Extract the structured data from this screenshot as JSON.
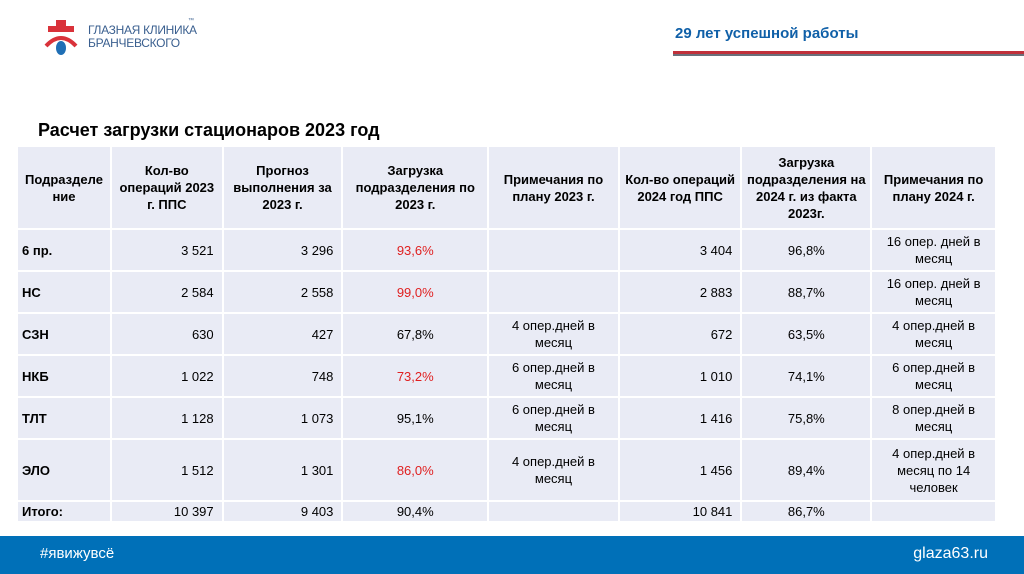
{
  "header": {
    "logo_line1": "ГЛАЗНАЯ КЛИНИКА",
    "logo_line2": "БРАНЧЕВСКОГО",
    "logo_tm": "™",
    "slogan": "29 лет успешной работы"
  },
  "title": "Расчет загрузки стационаров 2023 год",
  "table": {
    "columns": [
      "Подразделе ние",
      "Кол-во операций 2023 г. ППС",
      "Прогноз выполнения за 2023 г.",
      "Загрузка подразделения по 2023 г.",
      "Примечания по плану 2023 г.",
      "Кол-во операций 2024 год ППС",
      "Загрузка подразделения на 2024 г. из факта 2023г.",
      "Примечания по плану 2024 г."
    ],
    "rows": [
      {
        "unit": "6 пр.",
        "ops2023": "3 521",
        "forecast": "3 296",
        "load2023": "93,6%",
        "red": true,
        "note2023": "",
        "ops2024": "3 404",
        "load2024": "96,8%",
        "note2024": "16 опер. дней в месяц"
      },
      {
        "unit": "НС",
        "ops2023": "2 584",
        "forecast": "2 558",
        "load2023": "99,0%",
        "red": true,
        "note2023": "",
        "ops2024": "2 883",
        "load2024": "88,7%",
        "note2024": "16 опер. дней в месяц"
      },
      {
        "unit": "СЗН",
        "ops2023": "630",
        "forecast": "427",
        "load2023": "67,8%",
        "red": false,
        "note2023": "4 опер.дней в месяц",
        "ops2024": "672",
        "load2024": "63,5%",
        "note2024": "4 опер.дней в месяц"
      },
      {
        "unit": "НКБ",
        "ops2023": "1 022",
        "forecast": "748",
        "load2023": "73,2%",
        "red": true,
        "note2023": "6 опер.дней в месяц",
        "ops2024": "1 010",
        "load2024": "74,1%",
        "note2024": "6 опер.дней в месяц"
      },
      {
        "unit": "ТЛТ",
        "ops2023": "1 128",
        "forecast": "1 073",
        "load2023": "95,1%",
        "red": false,
        "note2023": "6 опер.дней в месяц",
        "ops2024": "1 416",
        "load2024": "75,8%",
        "note2024": "8 опер.дней в месяц"
      },
      {
        "unit": "ЭЛО",
        "ops2023": "1 512",
        "forecast": "1 301",
        "load2023": "86,0%",
        "red": true,
        "note2023": "4 опер.дней в месяц",
        "ops2024": "1 456",
        "load2024": "89,4%",
        "note2024": "4 опер.дней в месяц по 14 человек"
      },
      {
        "unit": "Итого:",
        "ops2023": "10 397",
        "forecast": "9 403",
        "load2023": "90,4%",
        "red": false,
        "note2023": "",
        "ops2024": "10 841",
        "load2024": "86,7%",
        "note2024": ""
      }
    ]
  },
  "footer": {
    "hashtag": "#явижувсё",
    "site": "glaza63.ru"
  },
  "colors": {
    "accent_red": "#e02020",
    "footer_blue": "#0070b8",
    "slogan_blue": "#1060a8"
  }
}
